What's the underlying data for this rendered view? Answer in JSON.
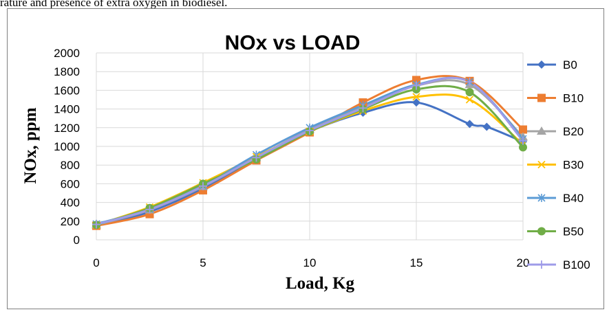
{
  "page": {
    "header_text": "rature and presence of extra oxygen in biodiesel."
  },
  "chart_data": {
    "type": "line",
    "title": "NOx vs LOAD",
    "xlabel": "Load, Kg",
    "ylabel": "NOx, ppm",
    "xlim": [
      0,
      20
    ],
    "ylim": [
      0,
      2000
    ],
    "xticks": [
      0,
      5,
      10,
      15,
      20
    ],
    "yticks": [
      0,
      200,
      400,
      600,
      800,
      1000,
      1200,
      1400,
      1600,
      1800,
      2000
    ],
    "grid": "horizontal and vertical major gridlines",
    "legend_position": "right",
    "smooth": true,
    "series": [
      {
        "name": "B0",
        "color": "#4472c4",
        "marker": "diamond",
        "points": [
          [
            0,
            150
          ],
          [
            2.5,
            300
          ],
          [
            5,
            550
          ],
          [
            7.5,
            870
          ],
          [
            10,
            1160
          ],
          [
            12.5,
            1360
          ],
          [
            15,
            1470
          ],
          [
            17.5,
            1240
          ],
          [
            18.3,
            1210
          ],
          [
            20,
            1050
          ]
        ]
      },
      {
        "name": "B10",
        "color": "#ed7d31",
        "marker": "square",
        "points": [
          [
            0,
            150
          ],
          [
            2.5,
            275
          ],
          [
            5,
            530
          ],
          [
            7.5,
            850
          ],
          [
            10,
            1150
          ],
          [
            12.5,
            1470
          ],
          [
            15,
            1710
          ],
          [
            17.5,
            1700
          ],
          [
            20,
            1180
          ]
        ]
      },
      {
        "name": "B20",
        "color": "#a5a5a5",
        "marker": "triangle",
        "points": [
          [
            0,
            160
          ],
          [
            2.5,
            320
          ],
          [
            5,
            570
          ],
          [
            7.5,
            880
          ],
          [
            10,
            1180
          ],
          [
            12.5,
            1420
          ],
          [
            15,
            1650
          ],
          [
            17.5,
            1660
          ],
          [
            20,
            1100
          ]
        ]
      },
      {
        "name": "B30",
        "color": "#ffc000",
        "marker": "x",
        "points": [
          [
            0,
            160
          ],
          [
            2.5,
            350
          ],
          [
            5,
            610
          ],
          [
            7.5,
            890
          ],
          [
            10,
            1160
          ],
          [
            12.5,
            1380
          ],
          [
            15,
            1530
          ],
          [
            17.5,
            1500
          ],
          [
            20,
            1020
          ]
        ]
      },
      {
        "name": "B40",
        "color": "#5b9bd5",
        "marker": "star",
        "points": [
          [
            0,
            170
          ],
          [
            2.5,
            330
          ],
          [
            5,
            580
          ],
          [
            7.5,
            910
          ],
          [
            10,
            1200
          ],
          [
            12.5,
            1440
          ],
          [
            15,
            1660
          ],
          [
            17.5,
            1690
          ],
          [
            20,
            1080
          ]
        ]
      },
      {
        "name": "B50",
        "color": "#70ad47",
        "marker": "circle",
        "points": [
          [
            0,
            160
          ],
          [
            2.5,
            340
          ],
          [
            5,
            600
          ],
          [
            7.5,
            860
          ],
          [
            10,
            1160
          ],
          [
            12.5,
            1400
          ],
          [
            15,
            1610
          ],
          [
            17.5,
            1580
          ],
          [
            20,
            990
          ]
        ]
      },
      {
        "name": "B100",
        "color": "#9e9be8",
        "marker": "plus",
        "points": [
          [
            0,
            165
          ],
          [
            2.5,
            325
          ],
          [
            5,
            575
          ],
          [
            7.5,
            880
          ],
          [
            10,
            1170
          ],
          [
            12.5,
            1410
          ],
          [
            15,
            1650
          ],
          [
            17.5,
            1690
          ],
          [
            20,
            1060
          ]
        ]
      }
    ]
  }
}
